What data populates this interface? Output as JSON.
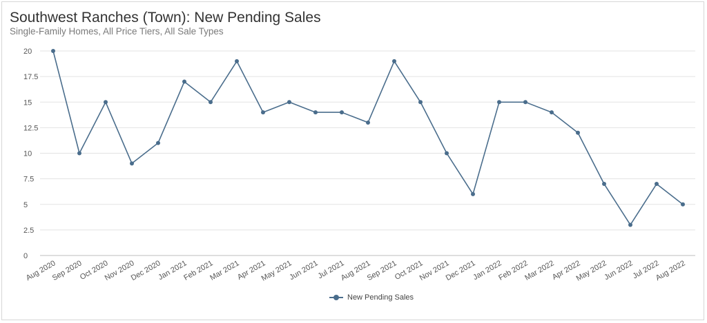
{
  "title": "Southwest Ranches (Town): New Pending Sales",
  "subtitle": "Single-Family Homes, All Price Tiers, All Sale Types",
  "colors": {
    "series": "#4a6d8c",
    "grid": "#e3e3e3",
    "tick": "#555555"
  },
  "chart_data": {
    "type": "line",
    "title": "Southwest Ranches (Town): New Pending Sales",
    "subtitle": "Single-Family Homes, All Price Tiers, All Sale Types",
    "xlabel": "",
    "ylabel": "",
    "ylim": [
      0,
      20
    ],
    "yticks": [
      0,
      2.5,
      5,
      7.5,
      10,
      12.5,
      15,
      17.5,
      20
    ],
    "ytick_labels": [
      "0",
      "2.5",
      "5",
      "7.5",
      "10",
      "12.5",
      "15",
      "17.5",
      "20"
    ],
    "grid": true,
    "legend_position": "bottom-center",
    "categories": [
      "Aug 2020",
      "Sep 2020",
      "Oct 2020",
      "Nov 2020",
      "Dec 2020",
      "Jan 2021",
      "Feb 2021",
      "Mar 2021",
      "Apr 2021",
      "May 2021",
      "Jun 2021",
      "Jul 2021",
      "Aug 2021",
      "Sep 2021",
      "Oct 2021",
      "Nov 2021",
      "Dec 2021",
      "Jan 2022",
      "Feb 2022",
      "Mar 2022",
      "Apr 2022",
      "May 2022",
      "Jun 2022",
      "Jul 2022",
      "Aug 2022"
    ],
    "series": [
      {
        "name": "New Pending Sales",
        "values": [
          20,
          10,
          15,
          9,
          11,
          17,
          15,
          19,
          14,
          15,
          14,
          14,
          13,
          19,
          15,
          10,
          6,
          15,
          15,
          14,
          12,
          7,
          3,
          7,
          5
        ]
      }
    ]
  }
}
